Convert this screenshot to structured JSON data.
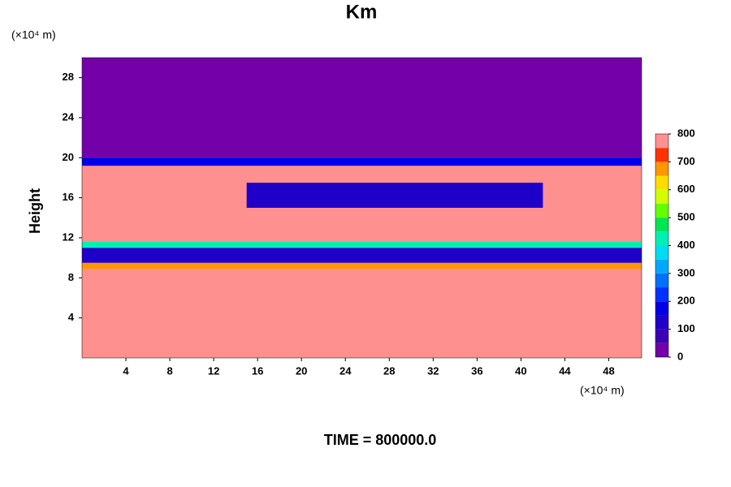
{
  "chart_data": {
    "type": "contour",
    "title": "Km",
    "ylabel": "Height",
    "x_unit": "(×10⁴ m)",
    "y_unit": "(×10⁴ m)",
    "footer": "TIME = 800000.0",
    "xlim": [
      0,
      51
    ],
    "ylim": [
      0,
      30
    ],
    "xticks": [
      4,
      8,
      12,
      16,
      20,
      24,
      28,
      32,
      36,
      40,
      44,
      48
    ],
    "yticks": [
      4,
      8,
      12,
      16,
      20,
      24,
      28
    ],
    "regions": [
      {
        "x": [
          0,
          51
        ],
        "y": [
          0,
          20
        ],
        "value": 800
      },
      {
        "x": [
          0,
          51
        ],
        "y": [
          20,
          30
        ],
        "value": 0
      },
      {
        "x": [
          0,
          51
        ],
        "y": [
          19.2,
          20
        ],
        "value": 150
      },
      {
        "x": [
          0,
          51
        ],
        "y": [
          9.5,
          11
        ],
        "value": 100
      },
      {
        "x": [
          15,
          42
        ],
        "y": [
          15,
          17.5
        ],
        "value": 100
      },
      {
        "x": [
          0,
          51
        ],
        "y": [
          11,
          11.6
        ],
        "value": 400
      },
      {
        "x": [
          0,
          51
        ],
        "y": [
          8.9,
          9.5
        ],
        "value": 650
      }
    ],
    "colorbar": {
      "levels": [
        0,
        50,
        100,
        150,
        200,
        250,
        300,
        350,
        400,
        450,
        500,
        550,
        600,
        650,
        700,
        750,
        800
      ],
      "colors": [
        "#7300a8",
        "#3c00b4",
        "#1e00c8",
        "#0000e6",
        "#0032ff",
        "#0070ff",
        "#00a8ff",
        "#00dcf0",
        "#00f0b4",
        "#00e650",
        "#64ff00",
        "#d2ff00",
        "#ffdc00",
        "#ff9600",
        "#ff3200",
        "#ff9090"
      ],
      "ticks": [
        0,
        100,
        200,
        300,
        400,
        500,
        600,
        700,
        800
      ]
    }
  }
}
